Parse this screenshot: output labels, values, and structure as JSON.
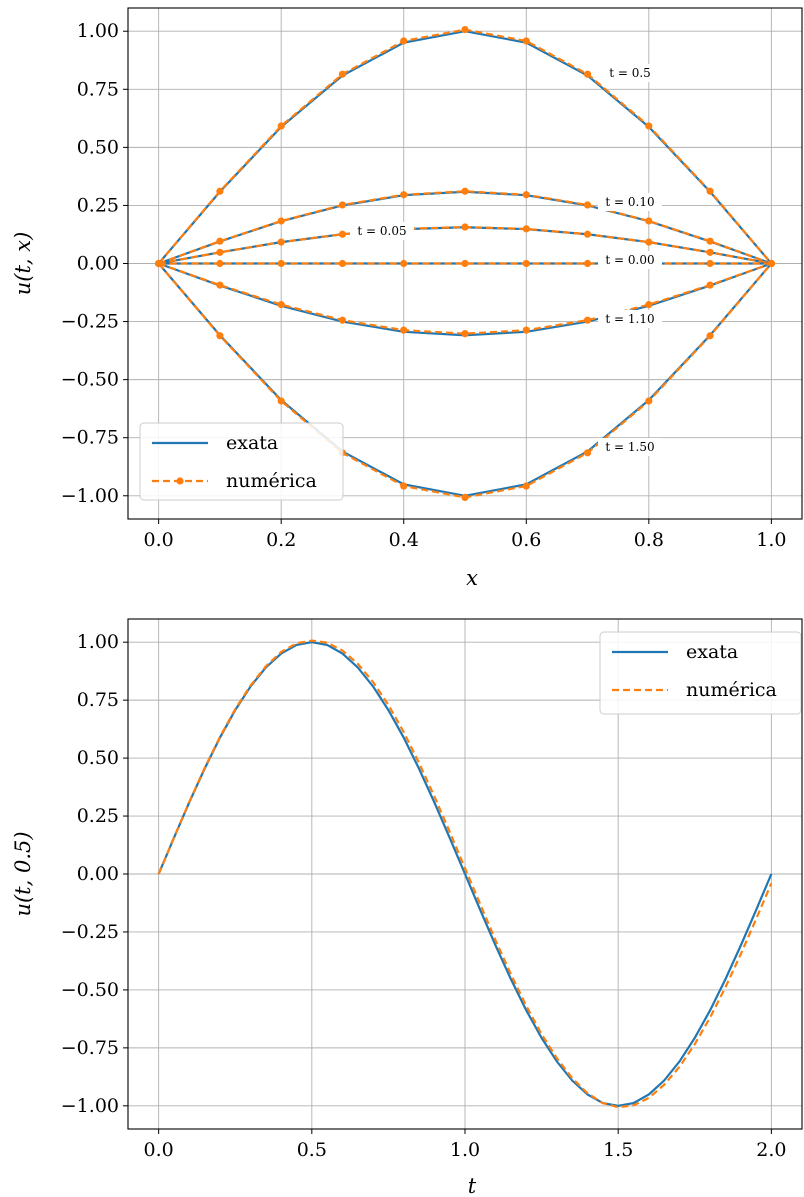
{
  "colors": {
    "exata": "#1f77b4",
    "numerica": "#ff7f0e",
    "grid": "#b0b0b0"
  },
  "chart_data": [
    {
      "type": "line",
      "xlabel": "x",
      "ylabel": "u(t, x)",
      "xlim": [
        -0.05,
        1.05
      ],
      "ylim": [
        -1.1,
        1.1
      ],
      "grid": true,
      "legend": {
        "position": "lower-left",
        "entries": [
          "exata",
          "numérica"
        ]
      },
      "xticks": [
        0.0,
        0.2,
        0.4,
        0.6,
        0.8,
        1.0
      ],
      "xtick_labels": [
        "0.0",
        "0.2",
        "0.4",
        "0.6",
        "0.8",
        "1.0"
      ],
      "yticks": [
        1.0,
        0.75,
        0.5,
        0.25,
        0.0,
        -0.25,
        -0.5,
        -0.75,
        -1.0
      ],
      "ytick_labels": [
        "1.00",
        "0.75",
        "0.50",
        "0.25",
        "0.00",
        "−0.25",
        "−0.50",
        "−0.75",
        "−1.00"
      ],
      "x": [
        0.0,
        0.1,
        0.2,
        0.3,
        0.4,
        0.5,
        0.6,
        0.7,
        0.8,
        0.9,
        1.0
      ],
      "curves": [
        {
          "label": "t = 0.5",
          "exata": [
            0.0,
            0.309,
            0.588,
            0.809,
            0.951,
            1.0,
            0.951,
            0.809,
            0.588,
            0.309,
            0.0
          ],
          "numerica": [
            0.0,
            0.311,
            0.592,
            0.815,
            0.958,
            1.007,
            0.958,
            0.815,
            0.592,
            0.311,
            0.0
          ]
        },
        {
          "label": "t = 0.10",
          "exata": [
            0.0,
            0.095,
            0.182,
            0.25,
            0.294,
            0.309,
            0.294,
            0.25,
            0.182,
            0.095,
            0.0
          ],
          "numerica": [
            0.0,
            0.096,
            0.183,
            0.252,
            0.296,
            0.311,
            0.296,
            0.252,
            0.183,
            0.096,
            0.0
          ]
        },
        {
          "label": "t = 0.05",
          "exata": [
            0.0,
            0.048,
            0.092,
            0.126,
            0.148,
            0.156,
            0.148,
            0.126,
            0.092,
            0.048,
            0.0
          ],
          "numerica": [
            0.0,
            0.048,
            0.092,
            0.126,
            0.149,
            0.157,
            0.149,
            0.126,
            0.092,
            0.048,
            0.0
          ]
        },
        {
          "label": "t = 0.00",
          "exata": [
            0,
            0,
            0,
            0,
            0,
            0,
            0,
            0,
            0,
            0,
            0
          ],
          "numerica": [
            0,
            0,
            0,
            0,
            0,
            0,
            0,
            0,
            0,
            0,
            0
          ]
        },
        {
          "label": "t = 1.10",
          "exata": [
            0.0,
            -0.095,
            -0.182,
            -0.25,
            -0.294,
            -0.309,
            -0.294,
            -0.25,
            -0.182,
            -0.095,
            0.0
          ],
          "numerica": [
            0.0,
            -0.093,
            -0.177,
            -0.244,
            -0.287,
            -0.302,
            -0.287,
            -0.244,
            -0.177,
            -0.093,
            0.0
          ]
        },
        {
          "label": "t = 1.50",
          "exata": [
            0.0,
            -0.309,
            -0.588,
            -0.809,
            -0.951,
            -1.0,
            -0.951,
            -0.809,
            -0.588,
            -0.309,
            0.0
          ],
          "numerica": [
            0.0,
            -0.311,
            -0.592,
            -0.815,
            -0.958,
            -1.007,
            -0.958,
            -0.815,
            -0.592,
            -0.311,
            0.0
          ]
        }
      ]
    },
    {
      "type": "line",
      "xlabel": "t",
      "ylabel": "u(t, 0.5)",
      "xlim": [
        -0.1,
        2.1
      ],
      "ylim": [
        -1.1,
        1.1
      ],
      "grid": true,
      "legend": {
        "position": "top-right",
        "entries": [
          "exata",
          "numérica"
        ]
      },
      "xticks": [
        0.0,
        0.5,
        1.0,
        1.5,
        2.0
      ],
      "xtick_labels": [
        "0.0",
        "0.5",
        "1.0",
        "1.5",
        "2.0"
      ],
      "yticks": [
        1.0,
        0.75,
        0.5,
        0.25,
        0.0,
        -0.25,
        -0.5,
        -0.75,
        -1.0
      ],
      "ytick_labels": [
        "1.00",
        "0.75",
        "0.50",
        "0.25",
        "0.00",
        "−0.25",
        "−0.50",
        "−0.75",
        "−1.00"
      ],
      "t": [
        0.0,
        0.05,
        0.1,
        0.15,
        0.2,
        0.25,
        0.3,
        0.35,
        0.4,
        0.45,
        0.5,
        0.55,
        0.6,
        0.65,
        0.7,
        0.75,
        0.8,
        0.85,
        0.9,
        0.95,
        1.0,
        1.05,
        1.1,
        1.15,
        1.2,
        1.25,
        1.3,
        1.35,
        1.4,
        1.45,
        1.5,
        1.55,
        1.6,
        1.65,
        1.7,
        1.75,
        1.8,
        1.85,
        1.9,
        1.95,
        2.0
      ],
      "exata": [
        0.0,
        0.156,
        0.309,
        0.454,
        0.588,
        0.707,
        0.809,
        0.891,
        0.951,
        0.988,
        1.0,
        0.988,
        0.951,
        0.891,
        0.809,
        0.707,
        0.588,
        0.454,
        0.309,
        0.156,
        0.0,
        -0.156,
        -0.309,
        -0.454,
        -0.588,
        -0.707,
        -0.809,
        -0.891,
        -0.951,
        -0.988,
        -1.0,
        -0.988,
        -0.951,
        -0.891,
        -0.809,
        -0.707,
        -0.588,
        -0.454,
        -0.309,
        -0.156,
        0.0
      ],
      "numerica": [
        0.0,
        0.157,
        0.311,
        0.457,
        0.591,
        0.711,
        0.813,
        0.896,
        0.958,
        0.995,
        1.007,
        0.998,
        0.964,
        0.907,
        0.828,
        0.729,
        0.612,
        0.479,
        0.335,
        0.182,
        0.025,
        -0.131,
        -0.287,
        -0.433,
        -0.569,
        -0.691,
        -0.795,
        -0.881,
        -0.946,
        -0.988,
        -1.006,
        -0.998,
        -0.966,
        -0.909,
        -0.832,
        -0.734,
        -0.619,
        -0.489,
        -0.346,
        -0.195,
        -0.04
      ]
    }
  ]
}
